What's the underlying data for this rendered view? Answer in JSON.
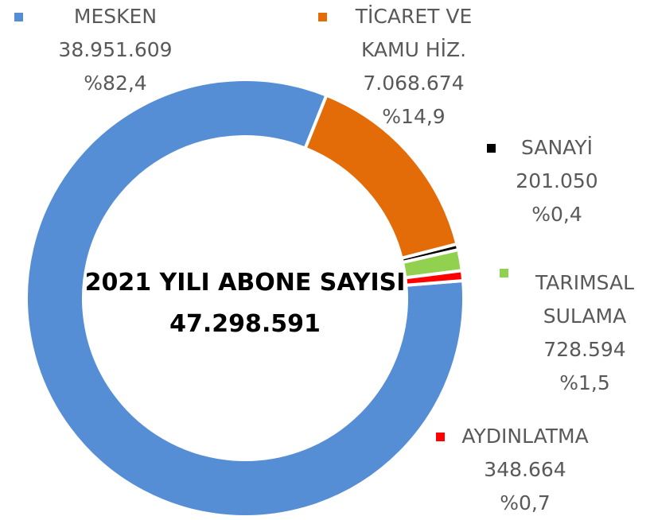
{
  "chart_data": {
    "type": "donut",
    "center_title": "2021 YILI ABONE SAYISI",
    "total": {
      "value": 47298591,
      "label": "47.298.591"
    },
    "categories": [
      "MESKEN",
      "TİCARET VE\nKAMU HİZ.",
      "SANAYİ",
      "TARIMSAL\nSULAMA",
      "AYDINLATMA"
    ],
    "values": [
      38951609,
      7068674,
      201050,
      728594,
      348664
    ],
    "value_labels": [
      "38.951.609",
      "7.068.674",
      "201.050",
      "728.594",
      "348.664"
    ],
    "percents": [
      82.4,
      14.9,
      0.4,
      1.5,
      0.7
    ],
    "percent_labels": [
      "%82,4",
      "%14,9",
      "%0,4",
      "%1,5",
      "%0,7"
    ],
    "colors": [
      "#558ed5",
      "#e36c09",
      "#000000",
      "#92d050",
      "#ff0000"
    ]
  }
}
